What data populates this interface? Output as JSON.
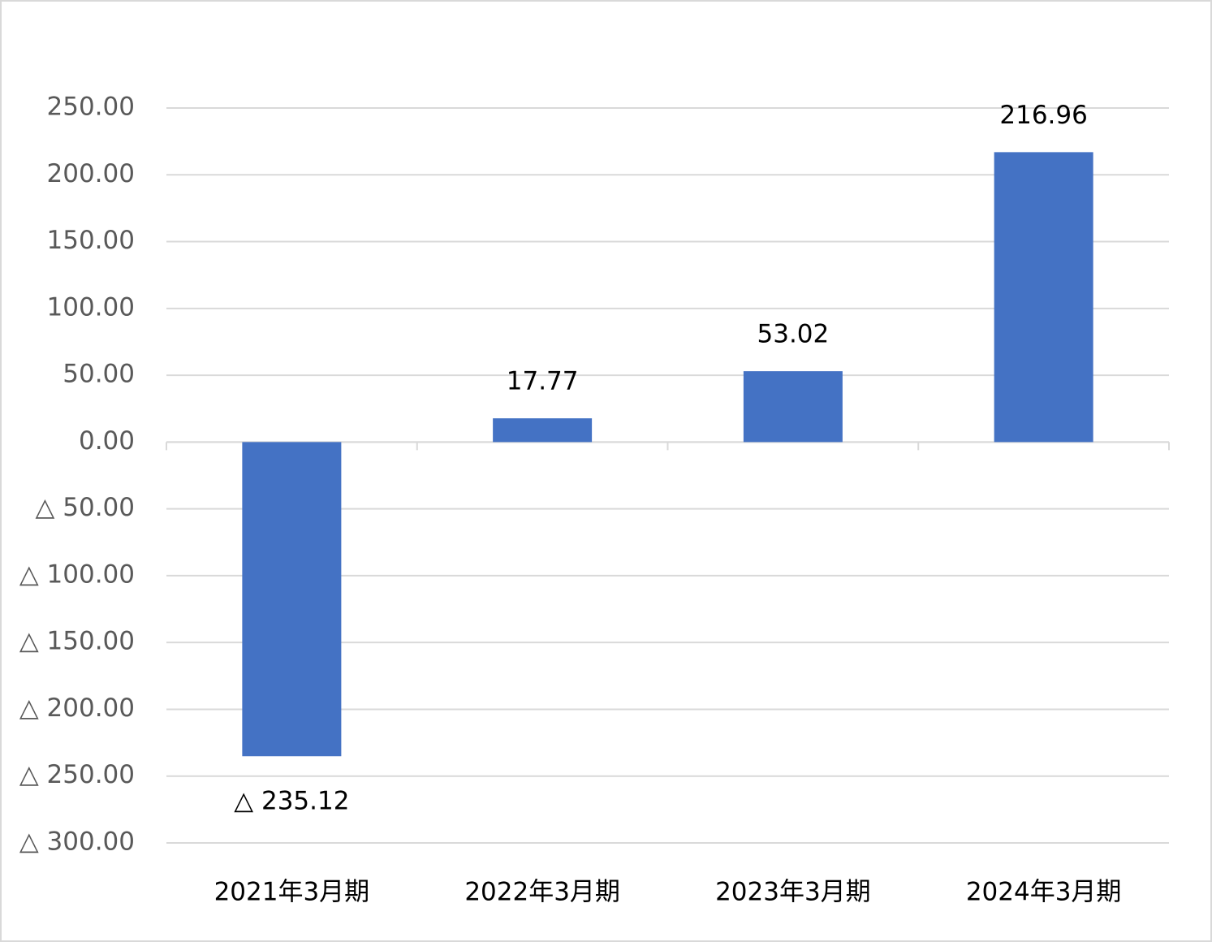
{
  "chart_data": {
    "type": "bar",
    "categories": [
      "2021年3月期",
      "2022年3月期",
      "2023年3月期",
      "2024年3月期"
    ],
    "values": [
      -235.12,
      17.77,
      53.02,
      216.96
    ],
    "value_labels": [
      "△ 235.12",
      "17.77",
      "53.02",
      "216.96"
    ],
    "color": "#4472c4",
    "ylim": [
      -300,
      250
    ],
    "yticks": [
      {
        "value": 250,
        "label": "250.00"
      },
      {
        "value": 200,
        "label": "200.00"
      },
      {
        "value": 150,
        "label": "150.00"
      },
      {
        "value": 100,
        "label": "100.00"
      },
      {
        "value": 50,
        "label": "50.00"
      },
      {
        "value": 0,
        "label": "0.00"
      },
      {
        "value": -50,
        "label": "△ 50.00"
      },
      {
        "value": -100,
        "label": "△ 100.00"
      },
      {
        "value": -150,
        "label": "△ 150.00"
      },
      {
        "value": -200,
        "label": "△ 200.00"
      },
      {
        "value": -250,
        "label": "△ 250.00"
      },
      {
        "value": -300,
        "label": "△ 300.00"
      }
    ],
    "grid": true
  }
}
